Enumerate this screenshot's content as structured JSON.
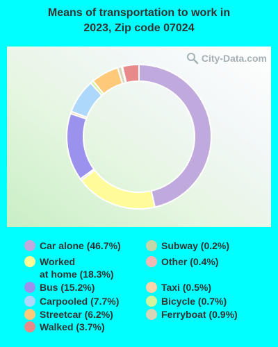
{
  "title_lines": [
    "Means of transportation to work in",
    "2023, Zip code 07024"
  ],
  "watermark": "City-Data.com",
  "chart_data": {
    "type": "pie",
    "title": "Means of transportation to work in 2023, Zip code 07024",
    "donut": true,
    "start": "top",
    "direction": "clockwise",
    "series": [
      {
        "label": "Car alone (46.7%)",
        "value": 46.7,
        "color": "#C0A9DC"
      },
      {
        "label": "Worked\nat home (18.3%)",
        "value": 18.3,
        "color": "#FFFB99"
      },
      {
        "label": "Other (0.4%)",
        "value": 0.4,
        "color": "#F2B9B4"
      },
      {
        "label": "Bus (15.2%)",
        "value": 15.2,
        "color": "#9B92ED"
      },
      {
        "label": "Taxi (0.5%)",
        "value": 0.5,
        "color": "#FFD5A8"
      },
      {
        "label": "Carpooled (7.7%)",
        "value": 7.7,
        "color": "#AED8FB"
      },
      {
        "label": "Bicycle (0.7%)",
        "value": 0.7,
        "color": "#D2F59B"
      },
      {
        "label": "Streetcar (6.2%)",
        "value": 6.2,
        "color": "#FFC97A"
      },
      {
        "label": "Ferryboat (0.9%)",
        "value": 0.9,
        "color": "#D7D5B8"
      },
      {
        "label": "Subway (0.2%)",
        "value": 0.2,
        "color": "#C3D7A8"
      },
      {
        "label": "Walked (3.7%)",
        "value": 3.7,
        "color": "#E98A8A"
      }
    ],
    "legend_left": [
      "Car alone (46.7%)",
      "Worked\nat home (18.3%)",
      "Bus (15.2%)",
      "Carpooled (7.7%)",
      "Streetcar (6.2%)",
      "Walked (3.7%)"
    ],
    "legend_right": [
      "Subway (0.2%)",
      "Other (0.4%)",
      "Taxi (0.5%)",
      "Bicycle (0.7%)",
      "Ferryboat (0.9%)"
    ]
  }
}
